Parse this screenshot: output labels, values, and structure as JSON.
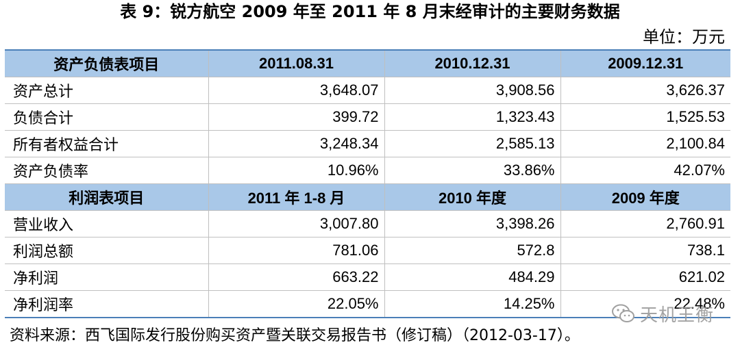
{
  "title": "表 9：锐方航空 2009 年至 2011 年 8 月末经审计的主要财务数据",
  "unit": "单位：万元",
  "balance": {
    "headers": [
      "资产负债表项目",
      "2011.08.31",
      "2010.12.31",
      "2009.12.31"
    ],
    "rows": [
      [
        "资产总计",
        "3,648.07",
        "3,908.56",
        "3,626.37"
      ],
      [
        "负债合计",
        "399.72",
        "1,323.43",
        "1,525.53"
      ],
      [
        "所有者权益合计",
        "3,248.34",
        "2,585.13",
        "2,100.84"
      ],
      [
        "资产负债率",
        "10.96%",
        "33.86%",
        "42.07%"
      ]
    ]
  },
  "income": {
    "headers": [
      "利润表项目",
      "2011 年 1-8 月",
      "2010 年度",
      "2009 年度"
    ],
    "rows": [
      [
        "营业收入",
        "3,007.80",
        "3,398.26",
        "2,760.91"
      ],
      [
        "利润总额",
        "781.06",
        "572.8",
        "738.1"
      ],
      [
        "净利润",
        "663.22",
        "484.29",
        "621.02"
      ],
      [
        "净利润率",
        "22.05%",
        "14.25%",
        "22.48%"
      ]
    ]
  },
  "source": "资料来源：西飞国际发行股份购买资产暨关联交易报告书（修订稿）（2012-03-17）。",
  "watermark": "天机王衡",
  "colors": {
    "header_bg": "#a9c8e8",
    "rule": "#4a7fb8",
    "grid": "#bfbfbf"
  }
}
